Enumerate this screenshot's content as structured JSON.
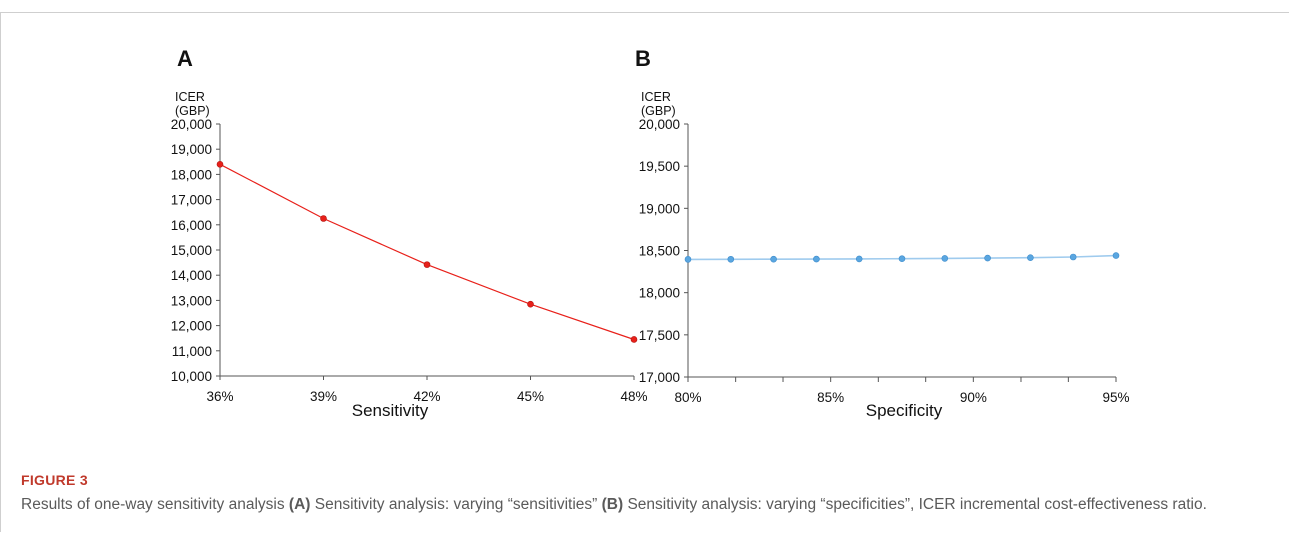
{
  "figure": {
    "label": "FIGURE 3",
    "caption": {
      "intro": "Results of one-way sensitivity analysis ",
      "a_tag": "(A)",
      "a_text": " Sensitivity analysis: varying “sensitivities” ",
      "b_tag": "(B)",
      "b_text": " Sensitivity analysis: varying “specificities”, ICER incremental cost-effectiveness ratio."
    }
  },
  "colors": {
    "panel_a_series": "#e8201a",
    "panel_b_series": "#5aa6e0",
    "axis": "#555555"
  },
  "chart_data": [
    {
      "panel": "A",
      "type": "line",
      "ylabel_lines": [
        "ICER",
        "(GBP)"
      ],
      "xlabel": "Sensitivity",
      "x_ticks": [
        "36%",
        "39%",
        "42%",
        "45%",
        "48%"
      ],
      "y_ticks": [
        "10,000",
        "11,000",
        "12,000",
        "13,000",
        "14,000",
        "15,000",
        "16,000",
        "17,000",
        "18,000",
        "19,000",
        "20,000"
      ],
      "xlim": [
        36,
        48
      ],
      "ylim": [
        10000,
        20000
      ],
      "x": [
        36,
        39,
        42,
        45,
        48
      ],
      "y": [
        18400,
        16250,
        14420,
        12850,
        11450
      ],
      "grid": false
    },
    {
      "panel": "B",
      "type": "line",
      "ylabel_lines": [
        "ICER",
        "(GBP)"
      ],
      "xlabel": "Specificity",
      "x_ticks": [
        "80%",
        "85%",
        "90%",
        "95%"
      ],
      "x_ticks_values": [
        80,
        85,
        90,
        95
      ],
      "minor_x_ticks": [
        81.67,
        83.33,
        86.67,
        88.33,
        91.67,
        93.33
      ],
      "y_ticks": [
        "17,000",
        "17,500",
        "18,000",
        "18,500",
        "19,000",
        "19,500",
        "20,000"
      ],
      "xlim": [
        80,
        95
      ],
      "ylim": [
        17000,
        20000
      ],
      "x": [
        80,
        81.5,
        83,
        84.5,
        86,
        87.5,
        89,
        90.5,
        92,
        93.5,
        95
      ],
      "y": [
        18395,
        18396,
        18397,
        18398,
        18400,
        18403,
        18406,
        18410,
        18415,
        18423,
        18440
      ],
      "grid": false
    }
  ]
}
